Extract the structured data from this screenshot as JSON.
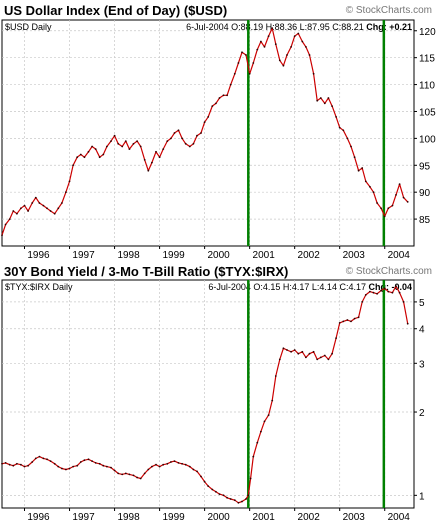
{
  "chart_data": [
    {
      "type": "line",
      "title": "US Dollar Index (End of Day) ($USD)",
      "watermark": "© StockCharts.com",
      "symbol_label": "$USD Daily",
      "quote": {
        "date": "6-Jul-2004",
        "open_label": "O:88.19",
        "high_label": "H:88.36",
        "low_label": "L:87.95",
        "close_label": "C:88.21",
        "change_label": "Chg: +0.21"
      },
      "y_scale": "linear",
      "ylim": [
        80,
        122
      ],
      "y_ticks": [
        85,
        90,
        95,
        100,
        105,
        110,
        115,
        120
      ],
      "x_range": [
        1995.5,
        2004.65
      ],
      "x_ticks": [
        {
          "label": "1996",
          "x": 1996.0
        },
        {
          "label": "1997",
          "x": 1997.0
        },
        {
          "label": "1998",
          "x": 1998.0
        },
        {
          "label": "1999",
          "x": 1999.0
        },
        {
          "label": "2000",
          "x": 2000.0
        },
        {
          "label": "2001",
          "x": 2001.0
        },
        {
          "label": "2002",
          "x": 2002.0
        },
        {
          "label": "2003",
          "x": 2003.0
        },
        {
          "label": "2004",
          "x": 2004.0
        }
      ],
      "grid": true,
      "line_color": "#cc0000",
      "series": [
        {
          "x": [
            1995.5,
            1995.58,
            1995.67,
            1995.75,
            1995.83,
            1995.92,
            1996.0,
            1996.08,
            1996.17,
            1996.25,
            1996.33,
            1996.42,
            1996.5,
            1996.58,
            1996.67,
            1996.75,
            1996.83,
            1996.92,
            1997.0,
            1997.08,
            1997.17,
            1997.25,
            1997.33,
            1997.42,
            1997.5,
            1997.58,
            1997.67,
            1997.75,
            1997.83,
            1997.92,
            1998.0,
            1998.08,
            1998.17,
            1998.25,
            1998.33,
            1998.42,
            1998.5,
            1998.58,
            1998.67,
            1998.75,
            1998.83,
            1998.92,
            1999.0,
            1999.08,
            1999.17,
            1999.25,
            1999.33,
            1999.42,
            1999.5,
            1999.58,
            1999.67,
            1999.75,
            1999.83,
            1999.92,
            2000.0,
            2000.08,
            2000.17,
            2000.25,
            2000.33,
            2000.42,
            2000.5,
            2000.58,
            2000.67,
            2000.75,
            2000.83,
            2000.92,
            2001.0,
            2001.08,
            2001.17,
            2001.25,
            2001.33,
            2001.42,
            2001.5,
            2001.58,
            2001.67,
            2001.75,
            2001.83,
            2001.92,
            2002.0,
            2002.08,
            2002.17,
            2002.25,
            2002.33,
            2002.42,
            2002.5,
            2002.58,
            2002.67,
            2002.75,
            2002.83,
            2002.92,
            2003.0,
            2003.08,
            2003.17,
            2003.25,
            2003.33,
            2003.42,
            2003.5,
            2003.58,
            2003.67,
            2003.75,
            2003.83,
            2003.92,
            2004.0,
            2004.08,
            2004.17,
            2004.25,
            2004.33,
            2004.42,
            2004.51
          ],
          "y": [
            82,
            84,
            85,
            86.5,
            86,
            87,
            87.5,
            86.5,
            88,
            89,
            88,
            87.5,
            87,
            86.5,
            86,
            87,
            88,
            90,
            92,
            95,
            96.5,
            97,
            96.5,
            97.5,
            98.5,
            98,
            96.5,
            97,
            98.5,
            99.5,
            100.5,
            99,
            98.5,
            99.5,
            98,
            99,
            99.5,
            98.5,
            96,
            94,
            95.5,
            97.5,
            96.5,
            98,
            99.5,
            100,
            101,
            101.5,
            100,
            99,
            98.5,
            99,
            100.5,
            101,
            103,
            104,
            106,
            106.5,
            107.5,
            108,
            108,
            110,
            112,
            114,
            116,
            115.5,
            112,
            114,
            116.5,
            118,
            117,
            119,
            120.5,
            117.5,
            114.5,
            113.5,
            115.5,
            117,
            119,
            119.5,
            118,
            117,
            115.5,
            112,
            107,
            107.5,
            106.5,
            107.5,
            106,
            104,
            102,
            101.5,
            100,
            98.5,
            96.5,
            94,
            94.5,
            92,
            91,
            90,
            88,
            87,
            85.5,
            87,
            87.5,
            89.5,
            91.5,
            89,
            88.2
          ]
        }
      ],
      "markers": [
        2000.97,
        2003.98
      ],
      "marker_color": "#008000"
    },
    {
      "type": "line",
      "title": "30Y Bond Yield / 3-Mo T-Bill Ratio ($TYX:$IRX)",
      "watermark": "© StockCharts.com",
      "symbol_label": "$TYX:$IRX Daily",
      "quote": {
        "date": "6-Jul-2004",
        "open_label": "O:4.15",
        "high_label": "H:4.17",
        "low_label": "L:4.14",
        "close_label": "C:4.17",
        "change_label": "Chg: -0.04"
      },
      "y_scale": "log",
      "ylim": [
        0.9,
        6.0
      ],
      "y_ticks": [
        1,
        2,
        3,
        4,
        5
      ],
      "x_range": [
        1995.5,
        2004.65
      ],
      "x_ticks": [
        {
          "label": "1996",
          "x": 1996.0
        },
        {
          "label": "1997",
          "x": 1997.0
        },
        {
          "label": "1998",
          "x": 1998.0
        },
        {
          "label": "1999",
          "x": 1999.0
        },
        {
          "label": "2000",
          "x": 2000.0
        },
        {
          "label": "2001",
          "x": 2001.0
        },
        {
          "label": "2002",
          "x": 2002.0
        },
        {
          "label": "2003",
          "x": 2003.0
        },
        {
          "label": "2004",
          "x": 2004.0
        }
      ],
      "grid": true,
      "line_color": "#cc0000",
      "series": [
        {
          "x": [
            1995.5,
            1995.58,
            1995.67,
            1995.75,
            1995.83,
            1995.92,
            1996.0,
            1996.08,
            1996.17,
            1996.25,
            1996.33,
            1996.42,
            1996.5,
            1996.58,
            1996.67,
            1996.75,
            1996.83,
            1996.92,
            1997.0,
            1997.08,
            1997.17,
            1997.25,
            1997.33,
            1997.42,
            1997.5,
            1997.58,
            1997.67,
            1997.75,
            1997.83,
            1997.92,
            1998.0,
            1998.08,
            1998.17,
            1998.25,
            1998.33,
            1998.42,
            1998.5,
            1998.58,
            1998.67,
            1998.75,
            1998.83,
            1998.92,
            1999.0,
            1999.08,
            1999.17,
            1999.25,
            1999.33,
            1999.42,
            1999.5,
            1999.58,
            1999.67,
            1999.75,
            1999.83,
            1999.92,
            2000.0,
            2000.08,
            2000.17,
            2000.25,
            2000.33,
            2000.42,
            2000.5,
            2000.58,
            2000.67,
            2000.75,
            2000.83,
            2000.92,
            2000.97,
            2001.02,
            2001.08,
            2001.17,
            2001.25,
            2001.33,
            2001.42,
            2001.5,
            2001.58,
            2001.67,
            2001.75,
            2001.83,
            2001.92,
            2002.0,
            2002.08,
            2002.17,
            2002.25,
            2002.33,
            2002.42,
            2002.5,
            2002.58,
            2002.67,
            2002.75,
            2002.83,
            2002.92,
            2003.0,
            2003.08,
            2003.17,
            2003.25,
            2003.33,
            2003.42,
            2003.5,
            2003.58,
            2003.67,
            2003.75,
            2003.83,
            2003.92,
            2004.0,
            2004.08,
            2004.17,
            2004.25,
            2004.33,
            2004.42,
            2004.51
          ],
          "y": [
            1.3,
            1.31,
            1.29,
            1.28,
            1.3,
            1.29,
            1.27,
            1.28,
            1.32,
            1.36,
            1.38,
            1.36,
            1.35,
            1.33,
            1.3,
            1.27,
            1.25,
            1.24,
            1.25,
            1.27,
            1.28,
            1.32,
            1.34,
            1.35,
            1.33,
            1.31,
            1.3,
            1.28,
            1.27,
            1.26,
            1.23,
            1.2,
            1.19,
            1.2,
            1.19,
            1.18,
            1.16,
            1.15,
            1.2,
            1.24,
            1.27,
            1.29,
            1.27,
            1.29,
            1.3,
            1.32,
            1.33,
            1.31,
            1.3,
            1.29,
            1.27,
            1.24,
            1.22,
            1.17,
            1.12,
            1.08,
            1.05,
            1.03,
            1.01,
            1.0,
            0.98,
            0.97,
            0.96,
            0.94,
            0.95,
            0.97,
            1.0,
            1.15,
            1.38,
            1.55,
            1.7,
            1.85,
            1.95,
            2.2,
            2.7,
            3.1,
            3.4,
            3.35,
            3.3,
            3.35,
            3.25,
            3.3,
            3.15,
            3.25,
            3.3,
            3.1,
            3.15,
            3.2,
            3.1,
            3.25,
            3.7,
            4.2,
            4.25,
            4.3,
            4.25,
            4.35,
            4.4,
            5.0,
            5.3,
            5.45,
            5.4,
            5.35,
            5.5,
            5.6,
            5.45,
            5.4,
            5.7,
            5.4,
            5.0,
            4.17
          ]
        }
      ],
      "markers": [
        2000.97,
        2003.98
      ],
      "marker_color": "#008000"
    }
  ]
}
